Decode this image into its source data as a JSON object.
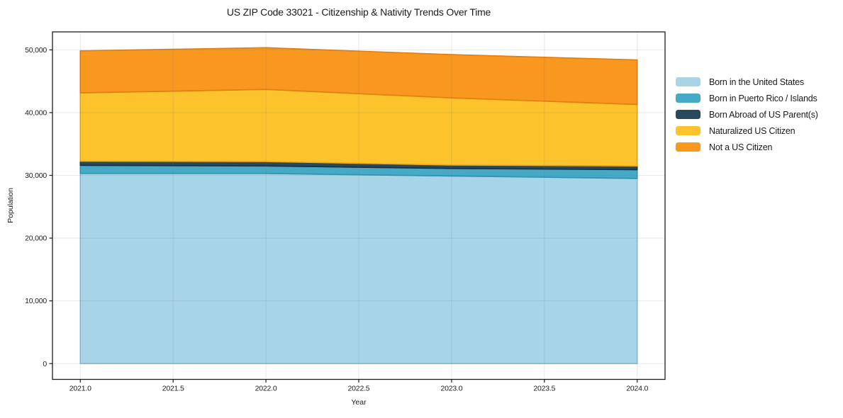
{
  "title": "US ZIP Code 33021 - Citizenship & Nativity Trends Over Time",
  "chart_data": {
    "type": "area",
    "stacked": true,
    "title": "US ZIP Code 33021 - Citizenship & Nativity Trends Over Time",
    "xlabel": "Year",
    "ylabel": "Population",
    "x": [
      2021,
      2022,
      2023,
      2024
    ],
    "series": [
      {
        "name": "Born in the United States",
        "color": "#a8d4e8",
        "edge": "#87c0da",
        "values": [
          30300,
          30300,
          29900,
          29500
        ]
      },
      {
        "name": "Born in Puerto Rico / Islands",
        "color": "#46aac6",
        "edge": "#2f93b0",
        "values": [
          1300,
          1200,
          1200,
          1400
        ]
      },
      {
        "name": "Born Abroad of US Parent(s)",
        "color": "#29485c",
        "edge": "#182f3e",
        "values": [
          650,
          700,
          550,
          600
        ]
      },
      {
        "name": "Naturalized US Citizen",
        "color": "#fcc32d",
        "edge": "#eca913",
        "values": [
          10900,
          11500,
          10700,
          9800
        ]
      },
      {
        "name": "Not a US Citizen",
        "color": "#f8981f",
        "edge": "#e27d0e",
        "values": [
          6700,
          6650,
          6900,
          7100
        ]
      }
    ],
    "stacked_totals": [
      49850,
      50350,
      49250,
      48400
    ],
    "xticks": [
      2021.0,
      2021.5,
      2022.0,
      2022.5,
      2023.0,
      2023.5,
      2024.0
    ],
    "xtick_labels": [
      "2021.0",
      "2021.5",
      "2022.0",
      "2022.5",
      "2023.0",
      "2023.5",
      "2024.0"
    ],
    "yticks": [
      0,
      10000,
      20000,
      30000,
      40000,
      50000
    ],
    "ytick_labels": [
      "0",
      "10,000",
      "20,000",
      "30,000",
      "40,000",
      "50,000"
    ],
    "xlim": [
      2020.85,
      2024.15
    ],
    "ylim": [
      -2520,
      52870
    ],
    "grid": true,
    "legend_position": "right of plot, vertical"
  },
  "style": {
    "grid_color_over_area": "rgba(110,110,110,0.16)",
    "spine_color": "#1c1c1c",
    "text_color": "#1a1a1a",
    "background": "#ffffff"
  }
}
